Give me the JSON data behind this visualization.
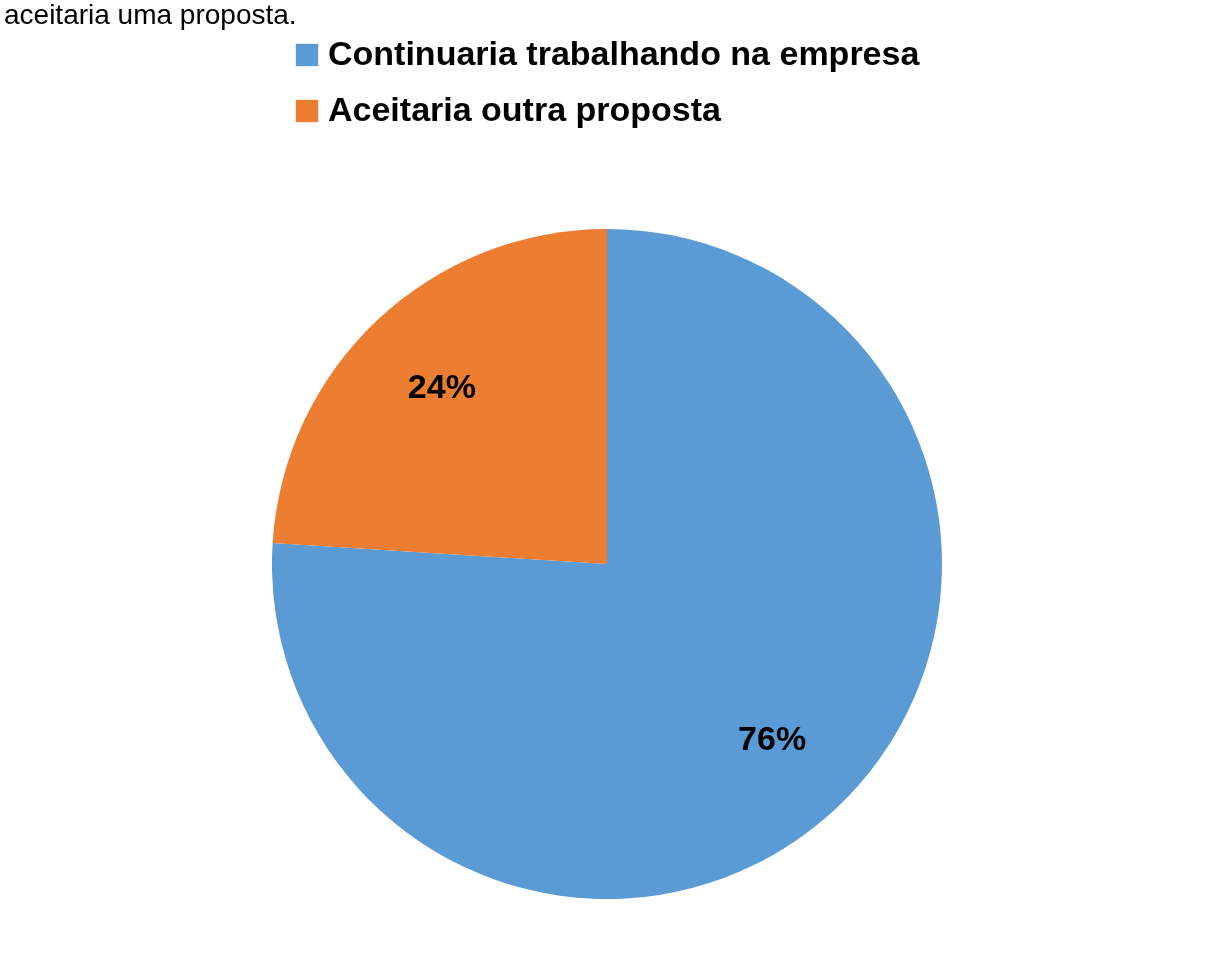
{
  "chart_data": {
    "type": "pie",
    "title": "aceitaria uma proposta.",
    "categories": [
      "Continuaria trabalhando na empresa",
      "Aceitaria outra proposta"
    ],
    "values": [
      76,
      24
    ],
    "colors": [
      "#5b9bd5",
      "#ed7d31"
    ],
    "value_labels": [
      "76%",
      "24%"
    ],
    "legend": "top"
  }
}
